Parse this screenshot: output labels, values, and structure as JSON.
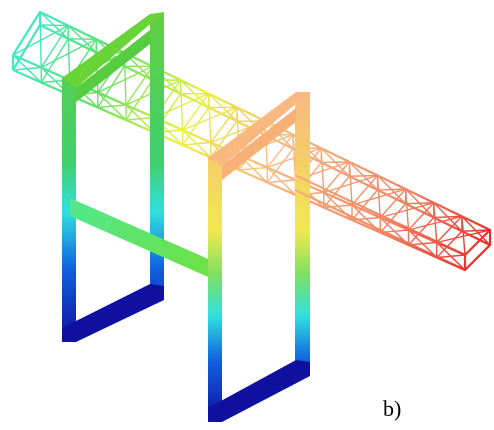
{
  "figure": {
    "panel_label": "b)",
    "colors": {
      "violet": "#1010a0",
      "blue": "#1050e0",
      "cyan": "#30e0e0",
      "green": "#60d040",
      "yellow": "#f0f040",
      "peach": "#f8b880",
      "orange": "#f09060",
      "red": "#e82020"
    }
  }
}
